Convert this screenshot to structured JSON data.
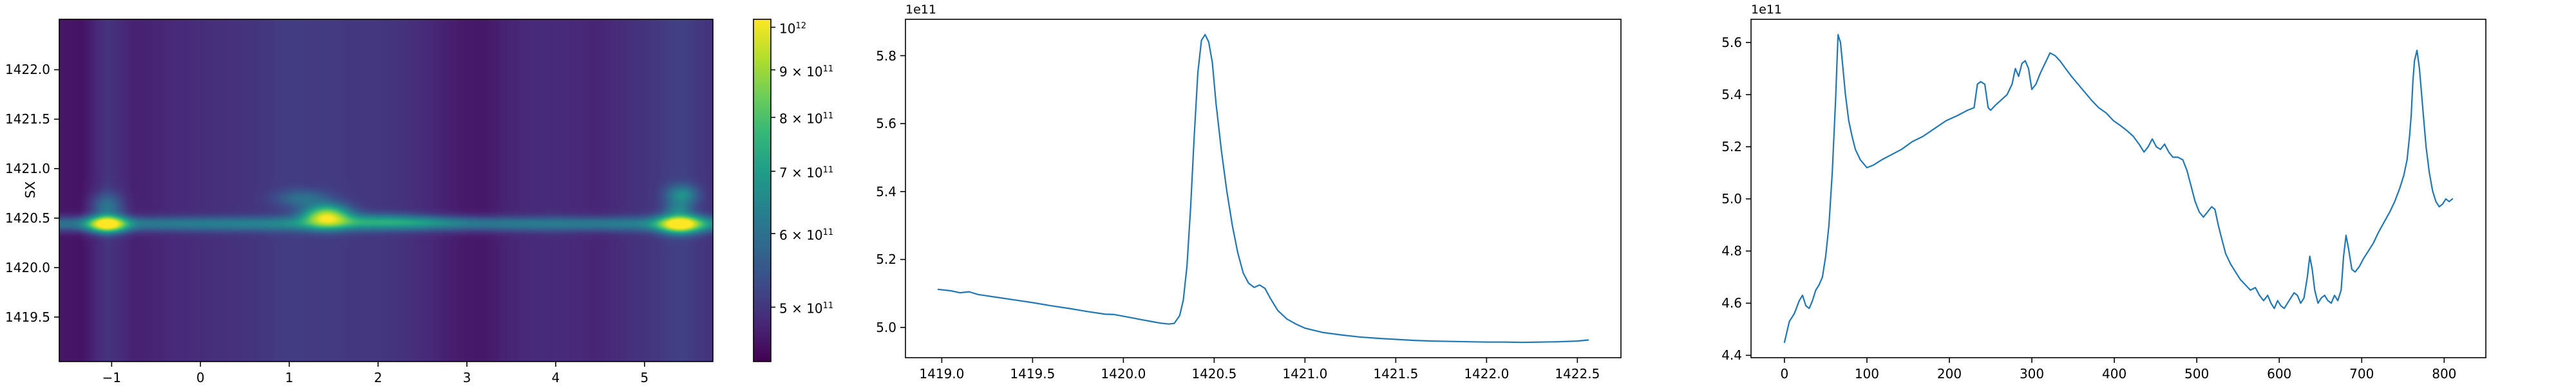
{
  "figure": {
    "background": "#ffffff"
  },
  "colors": {
    "curve": "#1f77b4",
    "axis": "#000000",
    "viridis": [
      "#440154",
      "#482878",
      "#3e4a89",
      "#31688e",
      "#26828e",
      "#1f9e89",
      "#35b779",
      "#6ece58",
      "#b5de2b",
      "#fde725"
    ]
  },
  "chart_data": [
    {
      "type": "heatmap",
      "title": "",
      "xlabel": "",
      "ylabel": "SX",
      "colormap": "viridis",
      "x_range": [
        -1.59,
        5.77
      ],
      "y_range": [
        1419.05,
        1422.51
      ],
      "y_axis_inverted_note": "top=1422.51, bottom=1419.05",
      "x_ticks": [
        {
          "v": -1,
          "label": "−1"
        },
        {
          "v": 0,
          "label": "0"
        },
        {
          "v": 1,
          "label": "1"
        },
        {
          "v": 2,
          "label": "2"
        },
        {
          "v": 3,
          "label": "3"
        },
        {
          "v": 4,
          "label": "4"
        },
        {
          "v": 5,
          "label": "5"
        }
      ],
      "y_ticks": [
        {
          "v": 1422.0,
          "label": "1422.0"
        },
        {
          "v": 1421.5,
          "label": "1421.5"
        },
        {
          "v": 1421.0,
          "label": "1421.0"
        },
        {
          "v": 1420.5,
          "label": "1420.5"
        },
        {
          "v": 1420.0,
          "label": "1420.0"
        },
        {
          "v": 1419.5,
          "label": "1419.5"
        }
      ],
      "colorbar": {
        "scale": "log",
        "vmin_e11": 4.37,
        "vmax_e11": 10.2,
        "ticks": [
          {
            "v_e11": 10.0,
            "base": "10",
            "exp": "12"
          },
          {
            "v_e11": 9.0,
            "base": "9 × 10",
            "exp": "11"
          },
          {
            "v_e11": 8.0,
            "base": "8 × 10",
            "exp": "11"
          },
          {
            "v_e11": 7.0,
            "base": "7 × 10",
            "exp": "11"
          },
          {
            "v_e11": 6.0,
            "base": "6 × 10",
            "exp": "11"
          },
          {
            "v_e11": 5.0,
            "base": "5 × 10",
            "exp": "11"
          }
        ]
      },
      "model": {
        "unit": "1e11",
        "base_profile": [
          [
            -1.59,
            4.6
          ],
          [
            -1.45,
            4.58
          ],
          [
            -1.35,
            4.55
          ],
          [
            -1.22,
            4.72
          ],
          [
            -1.05,
            4.98
          ],
          [
            -0.9,
            4.85
          ],
          [
            -0.75,
            4.72
          ],
          [
            -0.55,
            4.75
          ],
          [
            -0.3,
            4.82
          ],
          [
            0.0,
            4.87
          ],
          [
            0.3,
            4.92
          ],
          [
            0.6,
            4.96
          ],
          [
            0.9,
            5.06
          ],
          [
            1.05,
            5.09
          ],
          [
            1.25,
            5.05
          ],
          [
            1.45,
            5.06
          ],
          [
            1.7,
            5.02
          ],
          [
            2.0,
            4.99
          ],
          [
            2.3,
            4.93
          ],
          [
            2.55,
            4.82
          ],
          [
            2.75,
            4.72
          ],
          [
            3.0,
            4.63
          ],
          [
            3.2,
            4.62
          ],
          [
            3.45,
            4.75
          ],
          [
            3.7,
            4.82
          ],
          [
            4.0,
            4.85
          ],
          [
            4.25,
            4.8
          ],
          [
            4.5,
            4.77
          ],
          [
            4.75,
            4.88
          ],
          [
            5.0,
            4.95
          ],
          [
            5.15,
            5.02
          ],
          [
            5.3,
            5.12
          ],
          [
            5.45,
            5.14
          ],
          [
            5.6,
            5.02
          ],
          [
            5.77,
            4.93
          ]
        ],
        "hline": {
          "y": 1420.44,
          "sigma": 0.05,
          "amp": 1.4
        },
        "blobs": [
          [
            -1.05,
            1420.44,
            0.14,
            0.055,
            5.2
          ],
          [
            -1.05,
            1420.62,
            0.12,
            0.09,
            1.1
          ],
          [
            1.42,
            1420.52,
            0.17,
            0.075,
            4.2
          ],
          [
            1.15,
            1420.7,
            0.2,
            0.06,
            0.9
          ],
          [
            1.9,
            1420.48,
            0.45,
            0.05,
            1.0
          ],
          [
            2.45,
            1420.46,
            0.4,
            0.04,
            0.5
          ],
          [
            5.4,
            1420.44,
            0.16,
            0.06,
            5.2
          ],
          [
            5.42,
            1420.73,
            0.12,
            0.07,
            1.6
          ],
          [
            5.38,
            1420.59,
            0.1,
            0.05,
            1.0
          ]
        ]
      }
    },
    {
      "type": "line",
      "title": "",
      "xlabel": "",
      "ylabel": "",
      "y_offset_label": "1e11",
      "xlim": [
        1418.8,
        1422.74
      ],
      "ylim_e11": [
        4.911,
        5.907
      ],
      "x_ticks": [
        {
          "v": 1419.0,
          "label": "1419.0"
        },
        {
          "v": 1419.5,
          "label": "1419.5"
        },
        {
          "v": 1420.0,
          "label": "1420.0"
        },
        {
          "v": 1420.5,
          "label": "1420.5"
        },
        {
          "v": 1421.0,
          "label": "1421.0"
        },
        {
          "v": 1421.5,
          "label": "1421.5"
        },
        {
          "v": 1422.0,
          "label": "1422.0"
        },
        {
          "v": 1422.5,
          "label": "1422.5"
        }
      ],
      "y_ticks": [
        {
          "v": 5.0,
          "label": "5.0"
        },
        {
          "v": 5.2,
          "label": "5.2"
        },
        {
          "v": 5.4,
          "label": "5.4"
        },
        {
          "v": 5.6,
          "label": "5.6"
        },
        {
          "v": 5.8,
          "label": "5.8"
        }
      ],
      "points": [
        [
          1418.98,
          5.112
        ],
        [
          1419.05,
          5.108
        ],
        [
          1419.1,
          5.102
        ],
        [
          1419.15,
          5.105
        ],
        [
          1419.2,
          5.097
        ],
        [
          1419.3,
          5.089
        ],
        [
          1419.4,
          5.081
        ],
        [
          1419.5,
          5.073
        ],
        [
          1419.6,
          5.064
        ],
        [
          1419.7,
          5.056
        ],
        [
          1419.8,
          5.047
        ],
        [
          1419.9,
          5.039
        ],
        [
          1419.95,
          5.038
        ],
        [
          1420.0,
          5.033
        ],
        [
          1420.05,
          5.028
        ],
        [
          1420.1,
          5.023
        ],
        [
          1420.15,
          5.018
        ],
        [
          1420.2,
          5.013
        ],
        [
          1420.25,
          5.01
        ],
        [
          1420.28,
          5.012
        ],
        [
          1420.31,
          5.035
        ],
        [
          1420.33,
          5.08
        ],
        [
          1420.35,
          5.18
        ],
        [
          1420.37,
          5.35
        ],
        [
          1420.39,
          5.56
        ],
        [
          1420.41,
          5.75
        ],
        [
          1420.43,
          5.845
        ],
        [
          1420.45,
          5.862
        ],
        [
          1420.47,
          5.84
        ],
        [
          1420.49,
          5.78
        ],
        [
          1420.51,
          5.66
        ],
        [
          1420.54,
          5.52
        ],
        [
          1420.57,
          5.4
        ],
        [
          1420.6,
          5.3
        ],
        [
          1420.63,
          5.22
        ],
        [
          1420.66,
          5.16
        ],
        [
          1420.69,
          5.13
        ],
        [
          1420.72,
          5.118
        ],
        [
          1420.75,
          5.125
        ],
        [
          1420.78,
          5.115
        ],
        [
          1420.81,
          5.085
        ],
        [
          1420.85,
          5.05
        ],
        [
          1420.9,
          5.025
        ],
        [
          1420.95,
          5.01
        ],
        [
          1421.0,
          4.998
        ],
        [
          1421.1,
          4.985
        ],
        [
          1421.2,
          4.978
        ],
        [
          1421.3,
          4.972
        ],
        [
          1421.4,
          4.968
        ],
        [
          1421.5,
          4.965
        ],
        [
          1421.6,
          4.962
        ],
        [
          1421.7,
          4.96
        ],
        [
          1421.8,
          4.959
        ],
        [
          1421.9,
          4.958
        ],
        [
          1422.0,
          4.957
        ],
        [
          1422.1,
          4.957
        ],
        [
          1422.2,
          4.956
        ],
        [
          1422.3,
          4.957
        ],
        [
          1422.4,
          4.958
        ],
        [
          1422.5,
          4.96
        ],
        [
          1422.56,
          4.963
        ]
      ]
    },
    {
      "type": "line",
      "title": "",
      "xlabel": "",
      "ylabel": "",
      "y_offset_label": "1e11",
      "xlim": [
        -40.5,
        850.5
      ],
      "ylim_e11": [
        4.391,
        5.689
      ],
      "x_ticks": [
        {
          "v": 0,
          "label": "0"
        },
        {
          "v": 100,
          "label": "100"
        },
        {
          "v": 200,
          "label": "200"
        },
        {
          "v": 300,
          "label": "300"
        },
        {
          "v": 400,
          "label": "400"
        },
        {
          "v": 500,
          "label": "500"
        },
        {
          "v": 600,
          "label": "600"
        },
        {
          "v": 700,
          "label": "700"
        },
        {
          "v": 800,
          "label": "800"
        }
      ],
      "y_ticks": [
        {
          "v": 4.4,
          "label": "4.4"
        },
        {
          "v": 4.6,
          "label": "4.6"
        },
        {
          "v": 4.8,
          "label": "4.8"
        },
        {
          "v": 5.0,
          "label": "5.0"
        },
        {
          "v": 5.2,
          "label": "5.2"
        },
        {
          "v": 5.4,
          "label": "5.4"
        },
        {
          "v": 5.6,
          "label": "5.6"
        }
      ],
      "points": [
        [
          0,
          4.45
        ],
        [
          6,
          4.53
        ],
        [
          12,
          4.56
        ],
        [
          18,
          4.61
        ],
        [
          22,
          4.63
        ],
        [
          26,
          4.59
        ],
        [
          30,
          4.58
        ],
        [
          34,
          4.61
        ],
        [
          38,
          4.65
        ],
        [
          42,
          4.67
        ],
        [
          46,
          4.7
        ],
        [
          50,
          4.78
        ],
        [
          54,
          4.9
        ],
        [
          58,
          5.1
        ],
        [
          62,
          5.38
        ],
        [
          65,
          5.63
        ],
        [
          68,
          5.6
        ],
        [
          71,
          5.5
        ],
        [
          74,
          5.4
        ],
        [
          78,
          5.3
        ],
        [
          82,
          5.24
        ],
        [
          86,
          5.19
        ],
        [
          92,
          5.15
        ],
        [
          100,
          5.12
        ],
        [
          108,
          5.13
        ],
        [
          118,
          5.15
        ],
        [
          130,
          5.17
        ],
        [
          142,
          5.19
        ],
        [
          155,
          5.22
        ],
        [
          168,
          5.24
        ],
        [
          182,
          5.27
        ],
        [
          196,
          5.3
        ],
        [
          210,
          5.32
        ],
        [
          222,
          5.34
        ],
        [
          230,
          5.35
        ],
        [
          234,
          5.44
        ],
        [
          238,
          5.45
        ],
        [
          243,
          5.44
        ],
        [
          247,
          5.35
        ],
        [
          250,
          5.34
        ],
        [
          256,
          5.36
        ],
        [
          263,
          5.38
        ],
        [
          270,
          5.4
        ],
        [
          276,
          5.44
        ],
        [
          280,
          5.5
        ],
        [
          284,
          5.47
        ],
        [
          288,
          5.52
        ],
        [
          292,
          5.53
        ],
        [
          296,
          5.5
        ],
        [
          300,
          5.42
        ],
        [
          305,
          5.44
        ],
        [
          310,
          5.48
        ],
        [
          316,
          5.52
        ],
        [
          322,
          5.56
        ],
        [
          328,
          5.55
        ],
        [
          334,
          5.53
        ],
        [
          341,
          5.5
        ],
        [
          348,
          5.47
        ],
        [
          356,
          5.44
        ],
        [
          364,
          5.41
        ],
        [
          372,
          5.38
        ],
        [
          381,
          5.35
        ],
        [
          390,
          5.33
        ],
        [
          399,
          5.3
        ],
        [
          408,
          5.28
        ],
        [
          416,
          5.26
        ],
        [
          423,
          5.24
        ],
        [
          430,
          5.21
        ],
        [
          436,
          5.18
        ],
        [
          441,
          5.2
        ],
        [
          446,
          5.23
        ],
        [
          451,
          5.2
        ],
        [
          456,
          5.19
        ],
        [
          461,
          5.21
        ],
        [
          466,
          5.18
        ],
        [
          471,
          5.16
        ],
        [
          477,
          5.16
        ],
        [
          483,
          5.15
        ],
        [
          488,
          5.11
        ],
        [
          493,
          5.05
        ],
        [
          498,
          4.99
        ],
        [
          503,
          4.95
        ],
        [
          508,
          4.93
        ],
        [
          513,
          4.95
        ],
        [
          518,
          4.97
        ],
        [
          522,
          4.96
        ],
        [
          526,
          4.9
        ],
        [
          530,
          4.85
        ],
        [
          535,
          4.79
        ],
        [
          541,
          4.75
        ],
        [
          547,
          4.72
        ],
        [
          553,
          4.69
        ],
        [
          559,
          4.67
        ],
        [
          565,
          4.65
        ],
        [
          571,
          4.66
        ],
        [
          576,
          4.63
        ],
        [
          581,
          4.61
        ],
        [
          586,
          4.63
        ],
        [
          590,
          4.6
        ],
        [
          594,
          4.58
        ],
        [
          598,
          4.61
        ],
        [
          602,
          4.59
        ],
        [
          606,
          4.58
        ],
        [
          610,
          4.6
        ],
        [
          614,
          4.62
        ],
        [
          618,
          4.64
        ],
        [
          622,
          4.63
        ],
        [
          626,
          4.6
        ],
        [
          630,
          4.62
        ],
        [
          634,
          4.7
        ],
        [
          637,
          4.78
        ],
        [
          640,
          4.73
        ],
        [
          643,
          4.65
        ],
        [
          647,
          4.6
        ],
        [
          651,
          4.62
        ],
        [
          655,
          4.63
        ],
        [
          659,
          4.61
        ],
        [
          663,
          4.6
        ],
        [
          667,
          4.63
        ],
        [
          671,
          4.61
        ],
        [
          675,
          4.65
        ],
        [
          678,
          4.78
        ],
        [
          681,
          4.86
        ],
        [
          684,
          4.81
        ],
        [
          688,
          4.73
        ],
        [
          692,
          4.72
        ],
        [
          697,
          4.74
        ],
        [
          702,
          4.77
        ],
        [
          708,
          4.8
        ],
        [
          714,
          4.83
        ],
        [
          720,
          4.87
        ],
        [
          727,
          4.91
        ],
        [
          734,
          4.95
        ],
        [
          740,
          4.99
        ],
        [
          746,
          5.04
        ],
        [
          751,
          5.09
        ],
        [
          755,
          5.15
        ],
        [
          758,
          5.24
        ],
        [
          760,
          5.32
        ],
        [
          762,
          5.45
        ],
        [
          764,
          5.53
        ],
        [
          767,
          5.57
        ],
        [
          770,
          5.5
        ],
        [
          774,
          5.35
        ],
        [
          778,
          5.2
        ],
        [
          782,
          5.1
        ],
        [
          786,
          5.03
        ],
        [
          790,
          4.99
        ],
        [
          794,
          4.97
        ],
        [
          798,
          4.98
        ],
        [
          802,
          5.0
        ],
        [
          806,
          4.99
        ],
        [
          810,
          5.0
        ]
      ]
    }
  ]
}
